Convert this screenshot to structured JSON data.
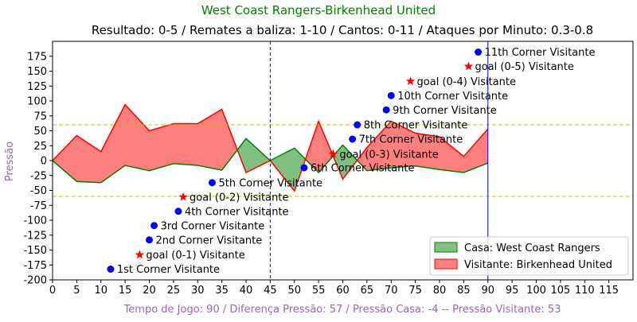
{
  "chart_data": {
    "type": "area",
    "title": "West Coast Rangers-Birkenhead United",
    "subtitle": "Resultado: 0-5 / Remates a baliza: 1-10 / Cantos: 0-11 / Ataques por Minuto: 0.3-0.8",
    "xlabel": "Tempo de Jogo: 90 / Diferença Pressão: 57 / Pressão Casa: -4 -- Pressão Visitante: 53",
    "ylabel": "Pressão",
    "xlim": [
      0,
      120
    ],
    "ylim": [
      -200,
      200
    ],
    "x_ticks": [
      0,
      5,
      10,
      15,
      20,
      25,
      30,
      35,
      40,
      45,
      50,
      55,
      60,
      65,
      70,
      75,
      80,
      85,
      90,
      95,
      100,
      105,
      110,
      115
    ],
    "y_ticks": [
      -200,
      -175,
      -150,
      -125,
      -100,
      -75,
      -50,
      -25,
      0,
      25,
      50,
      75,
      100,
      125,
      150,
      175
    ],
    "hlines": [
      60,
      -60
    ],
    "vlines": [
      {
        "x": 45,
        "style": "dashed"
      },
      {
        "x": 90,
        "style": "solid"
      }
    ],
    "colors": {
      "home_fill": "#7fbf7f",
      "home_line": "#008000",
      "away_fill": "#ff7f7f",
      "away_line": "#ff0000",
      "corner": "#0000ff",
      "goal": "#ff0000",
      "hline": "#bfbf00",
      "vline": "#0000ff",
      "subtitle_text": "#9467bd",
      "title_text": "#008000"
    },
    "series": [
      {
        "name": "Casa: West Coast Rangers",
        "x": [
          0,
          5,
          10,
          15,
          20,
          25,
          30,
          35,
          40,
          45,
          50,
          55,
          60,
          65,
          70,
          75,
          80,
          85,
          90
        ],
        "values": [
          0,
          -35,
          -37,
          -8,
          -17,
          -5,
          -8,
          -16,
          37,
          0,
          21,
          -20,
          26,
          -17,
          -12,
          -9,
          -15,
          -20,
          -4
        ]
      },
      {
        "name": "Visitante: Birkenhead United",
        "x": [
          0,
          5,
          10,
          15,
          20,
          25,
          30,
          35,
          40,
          45,
          50,
          55,
          60,
          65,
          70,
          75,
          80,
          85,
          90
        ],
        "values": [
          0,
          42,
          15,
          94,
          50,
          62,
          62,
          86,
          -20,
          0,
          -51,
          66,
          -31,
          22,
          66,
          46,
          40,
          7,
          53
        ]
      }
    ],
    "corners": [
      {
        "x": 12,
        "y": -182,
        "label": "1st Corner Visitante"
      },
      {
        "x": 20,
        "y": -133,
        "label": "2nd Corner Visitante"
      },
      {
        "x": 21,
        "y": -109,
        "label": "3rd Corner Visitante"
      },
      {
        "x": 26,
        "y": -85,
        "label": "4th Corner Visitante"
      },
      {
        "x": 33,
        "y": -37,
        "label": "5th Corner Visitante"
      },
      {
        "x": 52,
        "y": -12,
        "label": "6th Corner Visitante"
      },
      {
        "x": 62,
        "y": 36,
        "label": "7th Corner Visitante"
      },
      {
        "x": 63,
        "y": 60,
        "label": "8th Corner Visitante"
      },
      {
        "x": 69,
        "y": 85,
        "label": "9th Corner Visitante"
      },
      {
        "x": 70,
        "y": 109,
        "label": "10th Corner Visitante"
      },
      {
        "x": 88,
        "y": 182,
        "label": "11th Corner Visitante"
      }
    ],
    "goals": [
      {
        "x": 18,
        "y": -158,
        "label": "goal (0-1) Visitante"
      },
      {
        "x": 27,
        "y": -61,
        "label": "goal (0-2) Visitante"
      },
      {
        "x": 58,
        "y": 11,
        "label": "goal (0-3) Visitante"
      },
      {
        "x": 74,
        "y": 133,
        "label": "goal (0-4) Visitante"
      },
      {
        "x": 86,
        "y": 158,
        "label": "goal (0-5) Visitante"
      }
    ],
    "legend": {
      "position": "bottom-right",
      "entries": [
        "Casa: West Coast Rangers",
        "Visitante: Birkenhead United"
      ]
    }
  }
}
